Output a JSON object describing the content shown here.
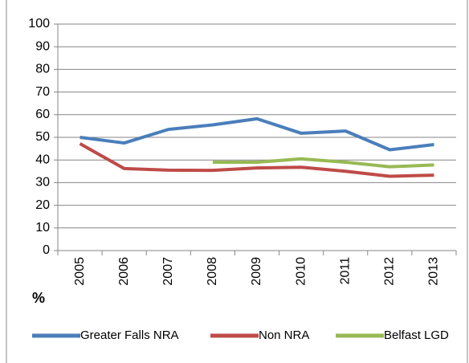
{
  "chart_data": {
    "type": "line",
    "y_label": "%",
    "categories": [
      "2005",
      "2006",
      "2007",
      "2008",
      "2009",
      "2010",
      "2011",
      "2012",
      "2013"
    ],
    "series": [
      {
        "name": "Greater Falls NRA",
        "color": "#4a7ebb",
        "values": [
          50,
          47.5,
          53.5,
          55.5,
          58.2,
          51.8,
          52.8,
          44.5,
          46.8
        ]
      },
      {
        "name": "Non NRA",
        "color": "#be4b48",
        "values": [
          47.2,
          36.2,
          35.5,
          35.4,
          36.5,
          36.8,
          35,
          32.8,
          33.3
        ]
      },
      {
        "name": "Belfast LGD",
        "color": "#98b954",
        "values": [
          null,
          null,
          null,
          39,
          39,
          40.5,
          39,
          37,
          37.8
        ]
      }
    ],
    "ylim": [
      0,
      100
    ],
    "yticks": [
      0,
      10,
      20,
      30,
      40,
      50,
      60,
      70,
      80,
      90,
      100
    ],
    "grid": true,
    "legend": "bottom"
  }
}
